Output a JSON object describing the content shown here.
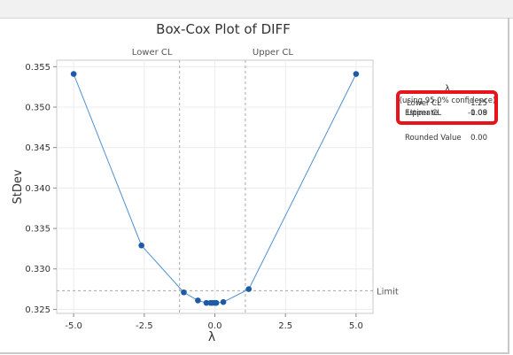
{
  "chart_data": {
    "type": "line",
    "title": "Box-Cox Plot of DIFF",
    "xlabel": "λ",
    "ylabel": "StDev",
    "xlim": [
      -5.6,
      5.6
    ],
    "ylim": [
      0.3245,
      0.3558
    ],
    "xticks": [
      -5.0,
      -2.5,
      0.0,
      2.5,
      5.0
    ],
    "xtick_labels": [
      "-5.0",
      "-2.5",
      "0.0",
      "2.5",
      "5.0"
    ],
    "yticks": [
      0.325,
      0.33,
      0.335,
      0.34,
      0.345,
      0.35,
      0.355
    ],
    "ytick_labels": [
      "0.325",
      "0.330",
      "0.335",
      "0.340",
      "0.345",
      "0.350",
      "0.355"
    ],
    "grid": true,
    "x": [
      -5.0,
      -2.6,
      -1.1,
      -0.6,
      -0.3,
      -0.15,
      -0.09,
      0.0,
      0.05,
      0.3,
      1.2,
      5.0
    ],
    "y": [
      0.3541,
      0.3329,
      0.3271,
      0.3261,
      0.3258,
      0.3258,
      0.3258,
      0.3258,
      0.3258,
      0.3259,
      0.3275,
      0.3541
    ],
    "limit": {
      "label": "Limit",
      "value": 0.3273
    },
    "lower_cl": {
      "label": "Lower CL",
      "value": -1.25
    },
    "upper_cl": {
      "label": "Upper CL",
      "value": 1.08
    },
    "colors": {
      "line": "#4f8fd1",
      "marker": "#1f5aa6",
      "highlight": "#e8141c",
      "ref": "#a8a8a8"
    }
  },
  "legend": {
    "title": "λ",
    "subtitle": "(using 95.0% confidence)",
    "rows": [
      {
        "label": "Estimate",
        "value": "-0.09"
      },
      {
        "label": "Lower CL",
        "value": "-1.25"
      },
      {
        "label": "Upper CL",
        "value": "1.08"
      },
      {
        "label": "Rounded Value",
        "value": "0.00"
      }
    ]
  }
}
